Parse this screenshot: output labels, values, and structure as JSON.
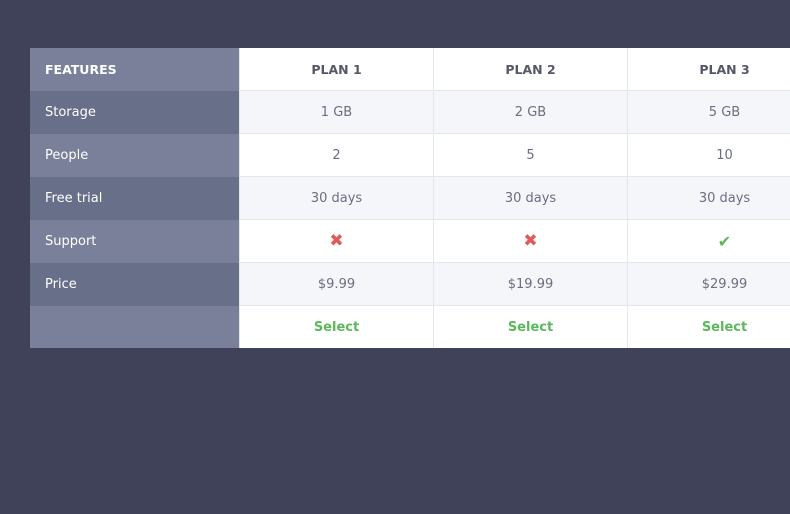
{
  "colors": {
    "background": "#40425a",
    "features_light": "#7a8099",
    "features_dark": "#687089",
    "cross": "#e05a5a",
    "check": "#5cb85c"
  },
  "header": {
    "features": "FEATURES",
    "plans": [
      "PLAN 1",
      "PLAN 2",
      "PLAN 3"
    ]
  },
  "rows": [
    {
      "label": "Storage",
      "values": [
        "1 GB",
        "2 GB",
        "5 GB"
      ]
    },
    {
      "label": "People",
      "values": [
        "2",
        "5",
        "10"
      ]
    },
    {
      "label": "Free trial",
      "values": [
        "30 days",
        "30 days",
        "30 days"
      ]
    }
  ],
  "support": {
    "label": "Support",
    "icons": [
      "cross-icon",
      "cross-icon",
      "check-icon"
    ],
    "glyphs": [
      "✖",
      "✖",
      "✔"
    ]
  },
  "price": {
    "label": "Price",
    "values": [
      "$9.99",
      "$19.99",
      "$29.99"
    ]
  },
  "select_label": "Select"
}
